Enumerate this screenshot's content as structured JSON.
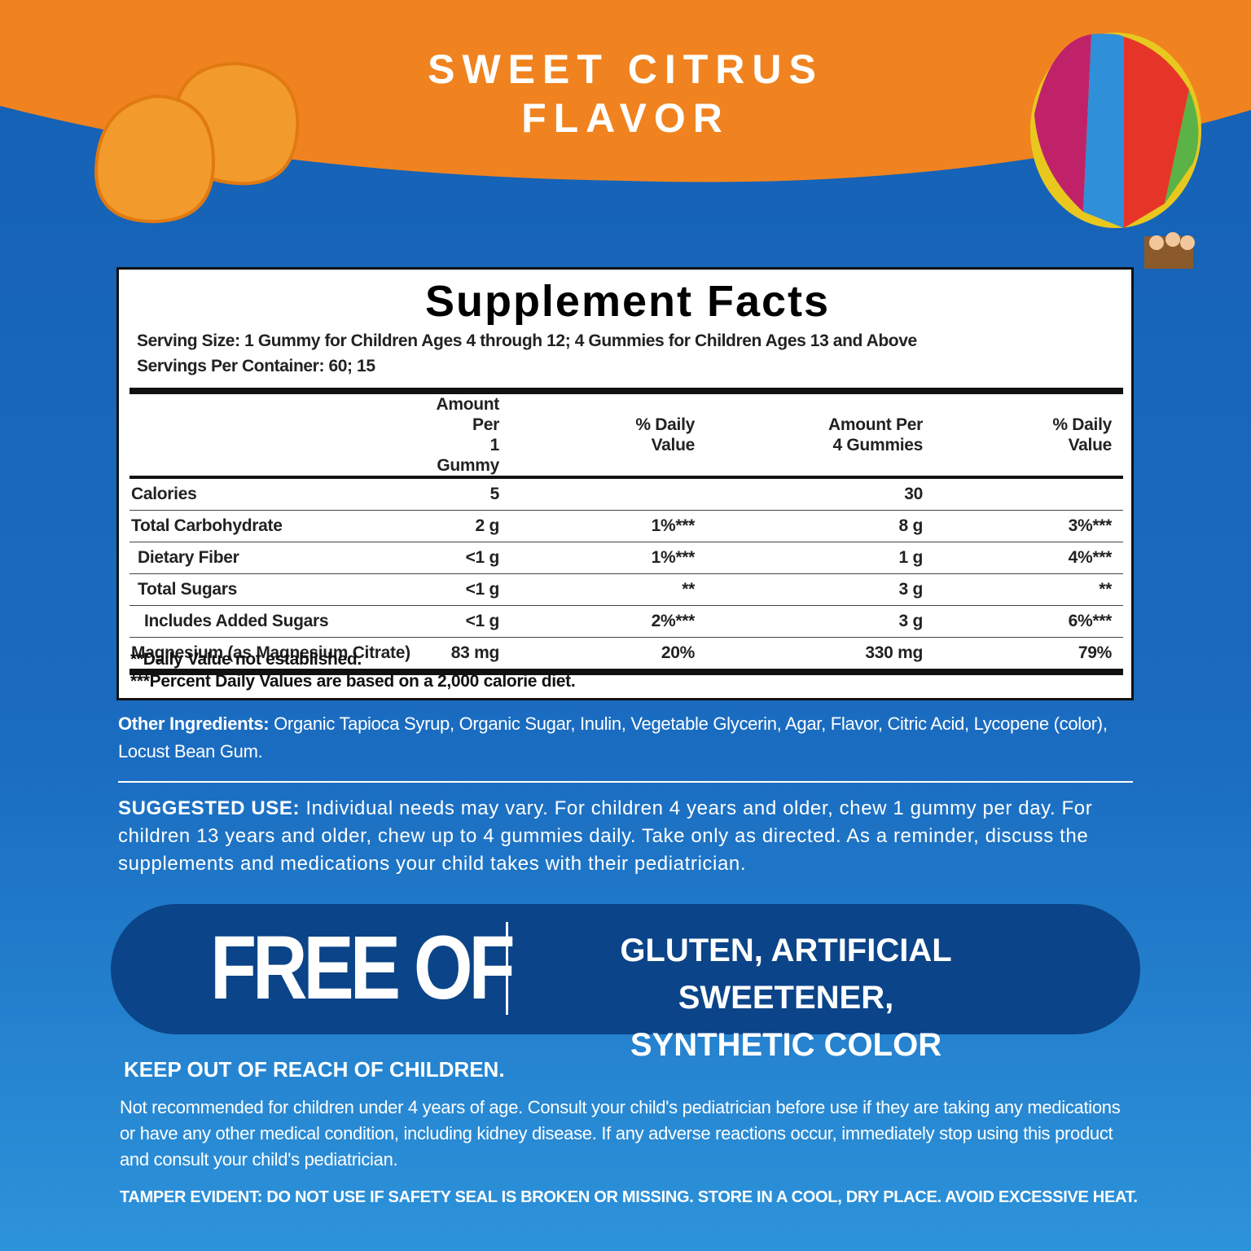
{
  "header": {
    "title_lines": [
      "SWEET CITRUS",
      "FLAVOR"
    ]
  },
  "facts": {
    "title": "Supplement Facts",
    "serving_size": "Serving Size: 1 Gummy for Children Ages 4 through 12; 4 Gummies for Children Ages 13 and Above",
    "servings_per_container": "Servings Per Container: 60; 15",
    "columns": [
      null,
      [
        "Amount Per",
        "1 Gummy"
      ],
      [
        "% Daily",
        "Value"
      ],
      [
        "Amount Per",
        "4 Gummies"
      ],
      [
        "% Daily",
        "Value"
      ]
    ],
    "rows": [
      [
        "Calories",
        "5",
        null,
        "30",
        null
      ],
      [
        "Total Carbohydrate",
        "2 g",
        "1%***",
        "8 g",
        "3%***"
      ],
      [
        "Dietary Fiber",
        "<1 g",
        "1%***",
        "1 g",
        "4%***"
      ],
      [
        "Total Sugars",
        "<1 g",
        "**",
        "3 g",
        "**"
      ],
      [
        "Includes Added Sugars",
        "<1 g",
        "2%***",
        "3 g",
        "6%***"
      ],
      [
        "Magnesium (as Magnesium Citrate)",
        "83 mg",
        "20%",
        "330 mg",
        "79%"
      ]
    ],
    "footnotes": [
      "**Daily Value not established.",
      "***Percent Daily Values are based on a 2,000 calorie diet."
    ]
  },
  "other_ingredients": {
    "label": "Other Ingredients:",
    "text": "Organic Tapioca Syrup, Organic Sugar, Inulin, Vegetable Glycerin, Agar, Flavor, Citric Acid, Lycopene (color), Locust Bean Gum."
  },
  "suggested_use": {
    "label": "SUGGESTED USE:",
    "text": "Individual needs may vary. For children 4 years and older, chew 1 gummy per day. For children 13 years and older, chew up to 4 gummies daily. Take only as directed. As a reminder, discuss the supplements and medications your child takes with their pediatrician."
  },
  "free_of": {
    "title": "FREE OF",
    "lines": [
      "GLUTEN, ARTIFICIAL SWEETENER,",
      "SYNTHETIC COLOR"
    ]
  },
  "warning": {
    "title": "KEEP OUT OF REACH OF CHILDREN.",
    "text": "Not recommended for children under 4 years of age. Consult your child's pediatrician before use if they are taking any medications or have any other medical condition, including kidney disease. If any adverse reactions occur, immediately stop using this product and consult your child's pediatrician.",
    "tamper": "TAMPER EVIDENT: DO NOT USE IF SAFETY SEAL IS BROKEN OR MISSING. STORE IN A COOL, DRY PLACE. AVOID EXCESSIVE HEAT."
  }
}
